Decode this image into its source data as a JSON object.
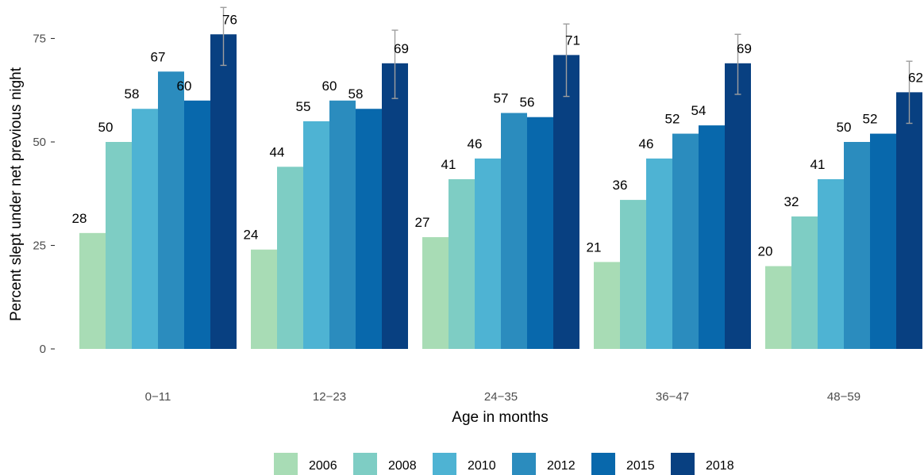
{
  "chart_data": {
    "type": "bar",
    "xlabel": "Age in months",
    "ylabel": "Percent slept under net previous night",
    "ylim": [
      0,
      80
    ],
    "yticks": [
      0,
      25,
      50,
      75
    ],
    "categories": [
      "0-11",
      "12-23",
      "24-35",
      "36-47",
      "48-59"
    ],
    "series": [
      {
        "name": "2006",
        "color": "#a8dcb5",
        "values": [
          28,
          24,
          27,
          21,
          20
        ],
        "labels": [
          "28",
          "24",
          "27",
          "21",
          "20"
        ]
      },
      {
        "name": "2008",
        "color": "#7ecdc4",
        "values": [
          50,
          44,
          41,
          36,
          32
        ],
        "labels": [
          "50",
          "44",
          "41",
          "36",
          "32"
        ]
      },
      {
        "name": "2010",
        "color": "#4eb3d3",
        "values": [
          58,
          55,
          46,
          46,
          41
        ],
        "labels": [
          "58",
          "55",
          "46",
          "46",
          "41"
        ]
      },
      {
        "name": "2012",
        "color": "#2b8cbe",
        "values": [
          67,
          60,
          57,
          52,
          50
        ],
        "labels": [
          "67",
          "60",
          "57",
          "52",
          "50"
        ]
      },
      {
        "name": "2015",
        "color": "#0868ac",
        "values": [
          60,
          58,
          56,
          54,
          52
        ],
        "labels": [
          "60",
          "58",
          "56",
          "54",
          "52"
        ]
      },
      {
        "name": "2018",
        "color": "#084081",
        "values": [
          76,
          69,
          71,
          69,
          62
        ],
        "labels": [
          "76",
          "69",
          "71",
          "69",
          "62"
        ],
        "error": [
          [
            68.5,
            82.5
          ],
          [
            60.5,
            77.0
          ],
          [
            61.0,
            78.5
          ],
          [
            61.5,
            76.0
          ],
          [
            54.5,
            69.5
          ]
        ]
      }
    ],
    "grid": false,
    "legend": "bottom",
    "error_bar_color": "#9e9e9e"
  }
}
